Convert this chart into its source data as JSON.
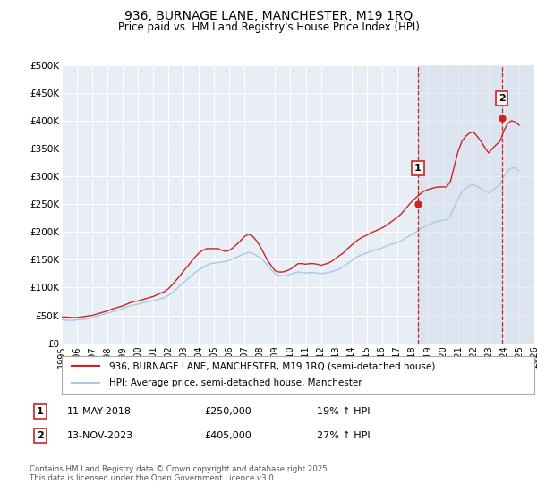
{
  "title_line1": "936, BURNAGE LANE, MANCHESTER, M19 1RQ",
  "title_line2": "Price paid vs. HM Land Registry's House Price Index (HPI)",
  "ylim": [
    0,
    500000
  ],
  "xlim": [
    1995,
    2026
  ],
  "yticks": [
    0,
    50000,
    100000,
    150000,
    200000,
    250000,
    300000,
    350000,
    400000,
    450000,
    500000
  ],
  "ytick_labels": [
    "£0",
    "£50K",
    "£100K",
    "£150K",
    "£200K",
    "£250K",
    "£300K",
    "£350K",
    "£400K",
    "£450K",
    "£500K"
  ],
  "xticks": [
    1995,
    1996,
    1997,
    1998,
    1999,
    2000,
    2001,
    2002,
    2003,
    2004,
    2005,
    2006,
    2007,
    2008,
    2009,
    2010,
    2011,
    2012,
    2013,
    2014,
    2015,
    2016,
    2017,
    2018,
    2019,
    2020,
    2021,
    2022,
    2023,
    2024,
    2025,
    2026
  ],
  "hpi_color": "#a8c8e8",
  "price_color": "#cc2222",
  "vline_color": "#cc2222",
  "bg_color": "#e8eef5",
  "marker1_x": 2018.36,
  "marker1_y": 250000,
  "marker2_x": 2023.87,
  "marker2_y": 405000,
  "marker1_label": "1",
  "marker2_label": "2",
  "shade_color": "#d0dcea",
  "legend_label1": "936, BURNAGE LANE, MANCHESTER, M19 1RQ (semi-detached house)",
  "legend_label2": "HPI: Average price, semi-detached house, Manchester",
  "table_row1": [
    "1",
    "11-MAY-2018",
    "£250,000",
    "19% ↑ HPI"
  ],
  "table_row2": [
    "2",
    "13-NOV-2023",
    "£405,000",
    "27% ↑ HPI"
  ],
  "footer": "Contains HM Land Registry data © Crown copyright and database right 2025.\nThis data is licensed under the Open Government Licence v3.0.",
  "hpi_data_x": [
    1995.0,
    1995.25,
    1995.5,
    1995.75,
    1996.0,
    1996.25,
    1996.5,
    1996.75,
    1997.0,
    1997.25,
    1997.5,
    1997.75,
    1998.0,
    1998.25,
    1998.5,
    1998.75,
    1999.0,
    1999.25,
    1999.5,
    1999.75,
    2000.0,
    2000.25,
    2000.5,
    2000.75,
    2001.0,
    2001.25,
    2001.5,
    2001.75,
    2002.0,
    2002.25,
    2002.5,
    2002.75,
    2003.0,
    2003.25,
    2003.5,
    2003.75,
    2004.0,
    2004.25,
    2004.5,
    2004.75,
    2005.0,
    2005.25,
    2005.5,
    2005.75,
    2006.0,
    2006.25,
    2006.5,
    2006.75,
    2007.0,
    2007.25,
    2007.5,
    2007.75,
    2008.0,
    2008.25,
    2008.5,
    2008.75,
    2009.0,
    2009.25,
    2009.5,
    2009.75,
    2010.0,
    2010.25,
    2010.5,
    2010.75,
    2011.0,
    2011.25,
    2011.5,
    2011.75,
    2012.0,
    2012.25,
    2012.5,
    2012.75,
    2013.0,
    2013.25,
    2013.5,
    2013.75,
    2014.0,
    2014.25,
    2014.5,
    2014.75,
    2015.0,
    2015.25,
    2015.5,
    2015.75,
    2016.0,
    2016.25,
    2016.5,
    2016.75,
    2017.0,
    2017.25,
    2017.5,
    2017.75,
    2018.0,
    2018.25,
    2018.5,
    2018.75,
    2019.0,
    2019.25,
    2019.5,
    2019.75,
    2020.0,
    2020.25,
    2020.5,
    2020.75,
    2021.0,
    2021.25,
    2021.5,
    2021.75,
    2022.0,
    2022.25,
    2022.5,
    2022.75,
    2023.0,
    2023.25,
    2023.5,
    2023.75,
    2024.0,
    2024.25,
    2024.5,
    2024.75,
    2025.0
  ],
  "hpi_data_y": [
    42000,
    41500,
    41000,
    41000,
    42000,
    42500,
    43000,
    44000,
    46000,
    48000,
    50000,
    52000,
    54000,
    56000,
    58000,
    60000,
    62000,
    65000,
    67000,
    69000,
    70000,
    72000,
    74000,
    75000,
    76000,
    78000,
    80000,
    82000,
    86000,
    91000,
    97000,
    103000,
    109000,
    115000,
    121000,
    127000,
    132000,
    136000,
    140000,
    143000,
    144000,
    145000,
    146000,
    147000,
    149000,
    152000,
    155000,
    158000,
    161000,
    163000,
    162000,
    158000,
    154000,
    148000,
    140000,
    132000,
    125000,
    122000,
    121000,
    122000,
    124000,
    126000,
    128000,
    127000,
    126000,
    127000,
    127000,
    126000,
    125000,
    126000,
    127000,
    129000,
    131000,
    134000,
    138000,
    143000,
    148000,
    153000,
    157000,
    160000,
    162000,
    165000,
    167000,
    169000,
    171000,
    174000,
    177000,
    179000,
    181000,
    184000,
    188000,
    192000,
    196000,
    200000,
    205000,
    209000,
    212000,
    215000,
    218000,
    220000,
    221000,
    222000,
    228000,
    245000,
    260000,
    272000,
    278000,
    283000,
    285000,
    282000,
    278000,
    274000,
    270000,
    275000,
    280000,
    285000,
    300000,
    310000,
    315000,
    315000,
    310000
  ],
  "price_data_x": [
    1995.0,
    1995.25,
    1995.5,
    1995.75,
    1996.0,
    1996.25,
    1996.5,
    1996.75,
    1997.0,
    1997.25,
    1997.5,
    1997.75,
    1998.0,
    1998.25,
    1998.5,
    1998.75,
    1999.0,
    1999.25,
    1999.5,
    1999.75,
    2000.0,
    2000.25,
    2000.5,
    2000.75,
    2001.0,
    2001.25,
    2001.5,
    2001.75,
    2002.0,
    2002.25,
    2002.5,
    2002.75,
    2003.0,
    2003.25,
    2003.5,
    2003.75,
    2004.0,
    2004.25,
    2004.5,
    2004.75,
    2005.0,
    2005.25,
    2005.5,
    2005.75,
    2006.0,
    2006.25,
    2006.5,
    2006.75,
    2007.0,
    2007.25,
    2007.5,
    2007.75,
    2008.0,
    2008.25,
    2008.5,
    2008.75,
    2009.0,
    2009.25,
    2009.5,
    2009.75,
    2010.0,
    2010.25,
    2010.5,
    2010.75,
    2011.0,
    2011.25,
    2011.5,
    2011.75,
    2012.0,
    2012.25,
    2012.5,
    2012.75,
    2013.0,
    2013.25,
    2013.5,
    2013.75,
    2014.0,
    2014.25,
    2014.5,
    2014.75,
    2015.0,
    2015.25,
    2015.5,
    2015.75,
    2016.0,
    2016.25,
    2016.5,
    2016.75,
    2017.0,
    2017.25,
    2017.5,
    2017.75,
    2018.0,
    2018.25,
    2018.5,
    2018.75,
    2019.0,
    2019.25,
    2019.5,
    2019.75,
    2020.0,
    2020.25,
    2020.5,
    2020.75,
    2021.0,
    2021.25,
    2021.5,
    2021.75,
    2022.0,
    2022.25,
    2022.5,
    2022.75,
    2023.0,
    2023.25,
    2023.5,
    2023.75,
    2024.0,
    2024.25,
    2024.5,
    2024.75,
    2025.0
  ],
  "price_data_y": [
    47000,
    47000,
    46500,
    46000,
    46000,
    47000,
    48000,
    49000,
    50000,
    52000,
    54000,
    56000,
    58000,
    61000,
    63000,
    65000,
    67000,
    70000,
    73000,
    75000,
    76000,
    78000,
    80000,
    82000,
    84000,
    87000,
    90000,
    93000,
    98000,
    105000,
    113000,
    121000,
    130000,
    138000,
    147000,
    155000,
    162000,
    167000,
    170000,
    170000,
    170000,
    170000,
    167000,
    165000,
    167000,
    172000,
    178000,
    185000,
    192000,
    196000,
    193000,
    185000,
    175000,
    162000,
    149000,
    139000,
    130000,
    128000,
    128000,
    130000,
    133000,
    138000,
    143000,
    143000,
    142000,
    143000,
    143000,
    142000,
    140000,
    142000,
    144000,
    148000,
    153000,
    158000,
    163000,
    170000,
    176000,
    182000,
    187000,
    191000,
    194000,
    198000,
    201000,
    204000,
    207000,
    211000,
    216000,
    221000,
    226000,
    232000,
    240000,
    248000,
    256000,
    262000,
    268000,
    273000,
    276000,
    278000,
    280000,
    281000,
    281000,
    281000,
    291000,
    318000,
    345000,
    363000,
    372000,
    378000,
    380000,
    372000,
    363000,
    352000,
    342000,
    350000,
    357000,
    363000,
    382000,
    395000,
    400000,
    398000,
    392000
  ]
}
